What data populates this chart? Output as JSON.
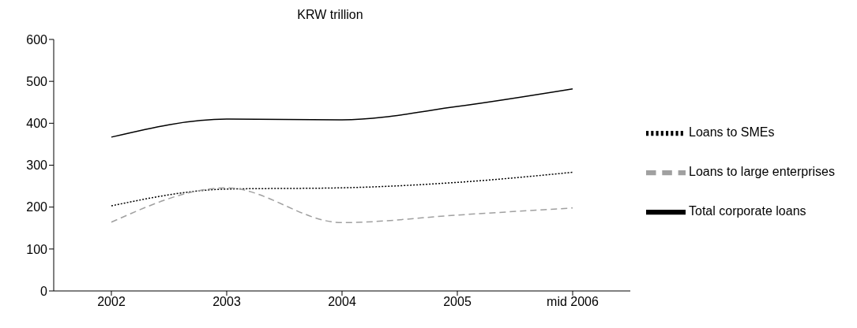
{
  "chart_data": {
    "type": "line",
    "title": "KRW trillion",
    "categories": [
      "2002",
      "2003",
      "2004",
      "2005",
      "mid 2006"
    ],
    "series": [
      {
        "name": "Total corporate loans",
        "color": "#000000",
        "line_style": "solid",
        "values": [
          367,
          410,
          408,
          440,
          482
        ]
      },
      {
        "name": "Loans to SMEs",
        "color": "#000000",
        "line_style": "dotted",
        "values": [
          203,
          243,
          246,
          259,
          283
        ]
      },
      {
        "name": "Loans to large enterprises",
        "color": "#a0a0a0",
        "line_style": "dashed",
        "values": [
          164,
          246,
          163,
          181,
          198
        ]
      }
    ],
    "ylim": [
      0,
      600
    ],
    "yticks": [
      0,
      100,
      200,
      300,
      400,
      500,
      600
    ],
    "grid": false,
    "legend": "right",
    "marker": "none"
  }
}
